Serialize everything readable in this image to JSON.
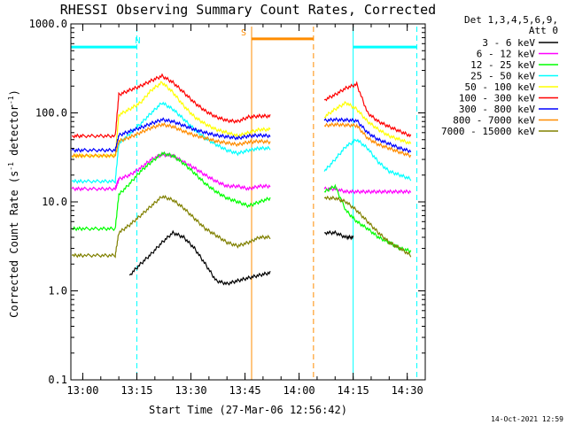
{
  "chart_data": {
    "type": "line",
    "title": "RHESSI Observing Summary Count Rates, Corrected",
    "xlabel": "Start Time (27-Mar-06 12:56:42)",
    "ylabel": "Corrected Count Rate (s",
    "ylabel_sup1": "-1",
    "ylabel_mid": " detector",
    "ylabel_sup2": "-1",
    "ylabel_end": ")",
    "y_scale": "log",
    "ylim": [
      0.1,
      1000.0
    ],
    "xlim": [
      "12:56:42",
      "14:35:00"
    ],
    "y_ticks": [
      "0.1",
      "1.0",
      "10.0",
      "100.0",
      "1000.0"
    ],
    "x_ticks": [
      "13:00",
      "13:15",
      "13:30",
      "13:45",
      "14:00",
      "14:15",
      "14:30"
    ],
    "legend_header": "Det 1,3,4,5,6,9,",
    "legend_header2": "Att 0",
    "legend_position": "right",
    "timestamp": "14-Oct-2021 12:59",
    "series": [
      {
        "name": "3 - 6 keV",
        "color": "#000000",
        "x": [
          "13:13",
          "13:16",
          "13:19",
          "13:22",
          "13:25",
          "13:28",
          "13:31",
          "13:34",
          "13:37",
          "13:40",
          "13:43",
          "13:46",
          "13:49",
          "13:52",
          "14:07",
          "14:10",
          "14:13",
          "14:15"
        ],
        "values": [
          1.5,
          2,
          2.6,
          3.5,
          4.5,
          4,
          3,
          2,
          1.3,
          1.2,
          1.3,
          1.4,
          1.5,
          1.6,
          4.5,
          4.5,
          4,
          4
        ]
      },
      {
        "name": "6 - 12 keV",
        "color": "#ff00ff",
        "x": [
          "12:57",
          "13:00",
          "13:05",
          "13:09",
          "13:10",
          "13:13",
          "13:16",
          "13:19",
          "13:22",
          "13:25",
          "13:28",
          "13:31",
          "13:34",
          "13:37",
          "13:40",
          "13:43",
          "13:46",
          "13:49",
          "13:52",
          "14:07",
          "14:10",
          "14:13",
          "14:16",
          "14:19",
          "14:22",
          "14:25",
          "14:28",
          "14:31"
        ],
        "values": [
          14,
          14,
          14,
          14,
          18,
          20,
          24,
          30,
          34,
          33,
          28,
          24,
          20,
          17,
          15,
          15,
          14,
          15,
          15,
          14,
          14,
          13,
          13,
          13,
          13,
          13,
          13,
          13
        ]
      },
      {
        "name": "12 - 25 keV",
        "color": "#00ff00",
        "x": [
          "12:57",
          "13:00",
          "13:05",
          "13:09",
          "13:10",
          "13:13",
          "13:16",
          "13:19",
          "13:22",
          "13:25",
          "13:28",
          "13:31",
          "13:34",
          "13:37",
          "13:40",
          "13:43",
          "13:46",
          "13:49",
          "13:52",
          "14:07",
          "14:10",
          "14:13",
          "14:16",
          "14:19",
          "14:22",
          "14:25",
          "14:28",
          "14:31"
        ],
        "values": [
          5,
          5,
          5,
          5,
          12,
          16,
          22,
          28,
          35,
          33,
          27,
          21,
          16,
          13,
          11,
          10,
          9,
          10,
          11,
          13,
          15,
          8,
          6,
          5,
          4,
          3.5,
          3,
          2.8
        ]
      },
      {
        "name": "25 - 50 keV",
        "color": "#00ffff",
        "x": [
          "12:57",
          "13:00",
          "13:05",
          "13:09",
          "13:10",
          "13:13",
          "13:16",
          "13:19",
          "13:22",
          "13:25",
          "13:28",
          "13:31",
          "13:34",
          "13:37",
          "13:40",
          "13:43",
          "13:46",
          "13:49",
          "13:52",
          "14:07",
          "14:10",
          "14:13",
          "14:16",
          "14:19",
          "14:22",
          "14:25",
          "14:28",
          "14:31"
        ],
        "values": [
          17,
          17,
          17,
          17,
          45,
          58,
          75,
          100,
          130,
          110,
          85,
          65,
          52,
          44,
          38,
          35,
          38,
          40,
          40,
          22,
          30,
          42,
          50,
          40,
          28,
          22,
          20,
          18
        ]
      },
      {
        "name": "50 - 100 keV",
        "color": "#ffff00",
        "x": [
          "12:57",
          "13:00",
          "13:05",
          "13:09",
          "13:10",
          "13:13",
          "13:16",
          "13:19",
          "13:22",
          "13:25",
          "13:28",
          "13:31",
          "13:34",
          "13:37",
          "13:40",
          "13:43",
          "13:46",
          "13:49",
          "13:52",
          "14:07",
          "14:10",
          "14:13",
          "14:16",
          "14:19",
          "14:22",
          "14:25",
          "14:28",
          "14:31"
        ],
        "values": [
          33,
          33,
          33,
          33,
          95,
          110,
          130,
          180,
          220,
          170,
          120,
          90,
          75,
          65,
          60,
          55,
          60,
          65,
          65,
          90,
          110,
          130,
          110,
          80,
          65,
          55,
          50,
          45
        ]
      },
      {
        "name": "100 - 300 keV",
        "color": "#ff0000",
        "x": [
          "12:57",
          "13:00",
          "13:05",
          "13:09",
          "13:10",
          "13:13",
          "13:16",
          "13:19",
          "13:22",
          "13:25",
          "13:28",
          "13:31",
          "13:34",
          "13:37",
          "13:40",
          "13:43",
          "13:46",
          "13:49",
          "13:52",
          "14:07",
          "14:10",
          "14:13",
          "14:16",
          "14:19",
          "14:22",
          "14:25",
          "14:28",
          "14:31"
        ],
        "values": [
          55,
          55,
          55,
          55,
          160,
          180,
          200,
          230,
          260,
          220,
          170,
          130,
          105,
          90,
          82,
          80,
          90,
          92,
          92,
          140,
          160,
          190,
          210,
          100,
          80,
          70,
          62,
          55
        ]
      },
      {
        "name": "300 - 800 keV",
        "color": "#0000ff",
        "x": [
          "12:57",
          "13:00",
          "13:05",
          "13:09",
          "13:10",
          "13:13",
          "13:16",
          "13:19",
          "13:22",
          "13:25",
          "13:28",
          "13:31",
          "13:34",
          "13:37",
          "13:40",
          "13:43",
          "13:46",
          "13:49",
          "13:52",
          "14:07",
          "14:10",
          "14:13",
          "14:16",
          "14:19",
          "14:22",
          "14:25",
          "14:28",
          "14:31"
        ],
        "values": [
          38,
          38,
          38,
          38,
          56,
          62,
          68,
          76,
          84,
          80,
          72,
          65,
          60,
          56,
          54,
          52,
          55,
          56,
          55,
          82,
          84,
          83,
          82,
          60,
          50,
          45,
          40,
          37
        ]
      },
      {
        "name": "800 - 7000 keV",
        "color": "#ff8c00",
        "x": [
          "12:57",
          "13:00",
          "13:05",
          "13:09",
          "13:10",
          "13:13",
          "13:16",
          "13:19",
          "13:22",
          "13:25",
          "13:28",
          "13:31",
          "13:34",
          "13:37",
          "13:40",
          "13:43",
          "13:46",
          "13:49",
          "13:52",
          "14:07",
          "14:10",
          "14:13",
          "14:16",
          "14:19",
          "14:22",
          "14:25",
          "14:28",
          "14:31"
        ],
        "values": [
          33,
          33,
          33,
          33,
          48,
          53,
          60,
          68,
          74,
          70,
          62,
          56,
          52,
          48,
          46,
          44,
          47,
          48,
          47,
          72,
          74,
          73,
          72,
          52,
          44,
          40,
          36,
          33
        ]
      },
      {
        "name": "7000 - 15000 keV",
        "color": "#808000",
        "x": [
          "12:57",
          "13:00",
          "13:05",
          "13:09",
          "13:10",
          "13:13",
          "13:16",
          "13:19",
          "13:22",
          "13:25",
          "13:28",
          "13:31",
          "13:34",
          "13:37",
          "13:40",
          "13:43",
          "13:46",
          "13:49",
          "13:52",
          "14:07",
          "14:10",
          "14:13",
          "14:16",
          "14:19",
          "14:22",
          "14:25",
          "14:28",
          "14:31"
        ],
        "values": [
          2.5,
          2.5,
          2.5,
          2.5,
          4.5,
          5.5,
          7,
          9,
          11.5,
          10.5,
          8.5,
          6.5,
          5,
          4.2,
          3.5,
          3.2,
          3.5,
          4,
          4,
          11,
          11,
          10,
          8,
          6,
          4.5,
          3.5,
          3,
          2.5
        ]
      }
    ],
    "annotations": [
      {
        "label": "N",
        "color": "#00ffff",
        "start": "12:56:42",
        "end": "13:15:00",
        "level": 550
      },
      {
        "label": "",
        "color": "#00ffff",
        "start": "14:15:00",
        "end": "14:32:40",
        "level": 550
      },
      {
        "label": "S",
        "color": "#ff8c00",
        "start": "13:46:50",
        "end": "14:04:00",
        "level": 680
      }
    ]
  }
}
